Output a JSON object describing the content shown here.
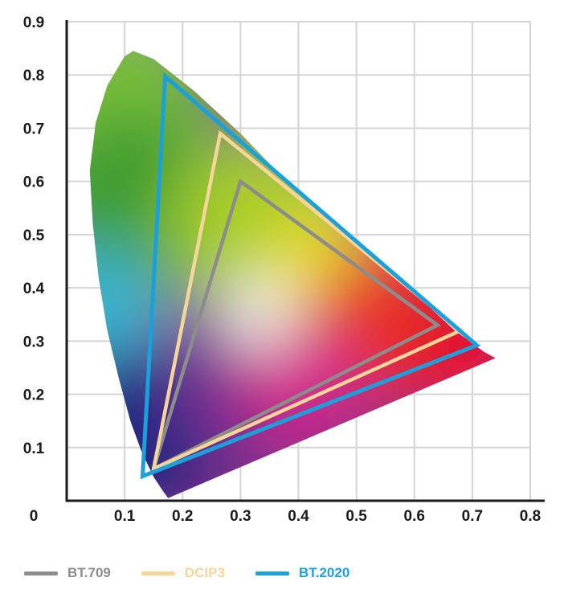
{
  "chart_data": {
    "type": "scatter",
    "title": "",
    "xlabel": "",
    "ylabel": "",
    "xlim": [
      0,
      0.8
    ],
    "ylim": [
      0,
      0.9
    ],
    "grid": true,
    "origin_label": "0",
    "x_ticks": [
      "0.1",
      "0.2",
      "0.3",
      "0.4",
      "0.5",
      "0.6",
      "0.7",
      "0.8"
    ],
    "y_ticks": [
      "0.1",
      "0.2",
      "0.3",
      "0.4",
      "0.5",
      "0.6",
      "0.7",
      "0.8",
      "0.9"
    ],
    "x_tick_values": [
      0.1,
      0.2,
      0.3,
      0.4,
      0.5,
      0.6,
      0.7,
      0.8
    ],
    "y_tick_values": [
      0.1,
      0.2,
      0.3,
      0.4,
      0.5,
      0.6,
      0.7,
      0.8,
      0.9
    ],
    "spectral_locus": [
      [
        0.175,
        0.005
      ],
      [
        0.165,
        0.02
      ],
      [
        0.15,
        0.045
      ],
      [
        0.13,
        0.09
      ],
      [
        0.11,
        0.15
      ],
      [
        0.09,
        0.23
      ],
      [
        0.07,
        0.32
      ],
      [
        0.055,
        0.42
      ],
      [
        0.045,
        0.52
      ],
      [
        0.04,
        0.62
      ],
      [
        0.05,
        0.71
      ],
      [
        0.07,
        0.78
      ],
      [
        0.1,
        0.835
      ],
      [
        0.115,
        0.845
      ],
      [
        0.15,
        0.83
      ],
      [
        0.22,
        0.77
      ],
      [
        0.3,
        0.69
      ],
      [
        0.38,
        0.6
      ],
      [
        0.46,
        0.52
      ],
      [
        0.54,
        0.445
      ],
      [
        0.61,
        0.38
      ],
      [
        0.67,
        0.32
      ],
      [
        0.72,
        0.28
      ],
      [
        0.74,
        0.268
      ]
    ],
    "series": [
      {
        "name": "BT.709",
        "color": "#8c8c8c",
        "points": [
          [
            0.64,
            0.33
          ],
          [
            0.3,
            0.6
          ],
          [
            0.15,
            0.06
          ]
        ]
      },
      {
        "name": "DCIP3",
        "color": "#f6d59a",
        "points": [
          [
            0.68,
            0.32
          ],
          [
            0.265,
            0.69
          ],
          [
            0.15,
            0.06
          ]
        ]
      },
      {
        "name": "BT.2020",
        "color": "#1aa1db",
        "points": [
          [
            0.708,
            0.292
          ],
          [
            0.17,
            0.797
          ],
          [
            0.131,
            0.046
          ]
        ]
      }
    ]
  },
  "legend": {
    "items": [
      {
        "label": "BT.709",
        "color": "#8c8c8c"
      },
      {
        "label": "DCIP3",
        "color": "#f6d59a"
      },
      {
        "label": "BT.2020",
        "color": "#1aa1db"
      }
    ]
  }
}
